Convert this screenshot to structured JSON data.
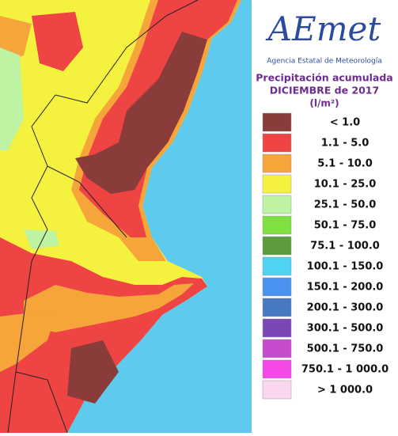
{
  "logo": {
    "name": "AEmet",
    "agency": "Agencia Estatal de Meteorología"
  },
  "title": {
    "line1": "Precipitación acumulada",
    "line2": "DICIEMBRE de 2017",
    "units": "(l/m²)"
  },
  "legend": [
    {
      "label": "< 1.0",
      "color": "#8a3c3a"
    },
    {
      "label": "1.1 - 5.0",
      "color": "#ef4444"
    },
    {
      "label": "5.1 - 10.0",
      "color": "#f5a53a"
    },
    {
      "label": "10.1 - 25.0",
      "color": "#f4f23e"
    },
    {
      "label": "25.1 - 50.0",
      "color": "#bdf3a2"
    },
    {
      "label": "50.1 - 75.0",
      "color": "#80e03f"
    },
    {
      "label": "75.1 - 100.0",
      "color": "#5c9c3d"
    },
    {
      "label": "100.1 - 150.0",
      "color": "#4fd3f2"
    },
    {
      "label": "150.1 - 200.0",
      "color": "#4a92f0"
    },
    {
      "label": "200.1 - 300.0",
      "color": "#4679c2"
    },
    {
      "label": "300.1 - 500.0",
      "color": "#7a47b5"
    },
    {
      "label": "500.1 - 750.0",
      "color": "#c64ccd"
    },
    {
      "label": "750.1 - 1 000.0",
      "color": "#f548e6"
    },
    {
      "label": "> 1 000.0",
      "color": "#fbd6ef"
    }
  ]
}
